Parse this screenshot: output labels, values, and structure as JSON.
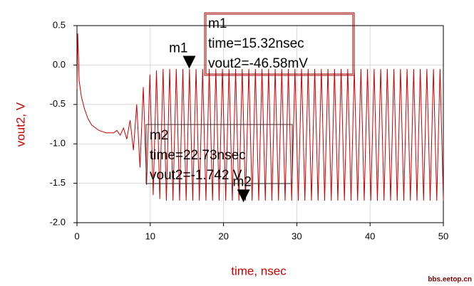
{
  "chart_data": {
    "type": "line",
    "x_label": "time, nsec",
    "y_label": "vout2, V",
    "xlim": [
      0,
      50
    ],
    "xticks": [
      0,
      10,
      20,
      30,
      40,
      50
    ],
    "ylim": [
      -2.0,
      0.5
    ],
    "yticks": [
      {
        "value": 0.5,
        "label": "0.5"
      },
      {
        "value": 0,
        "label": "0.0"
      },
      {
        "value": -0.5,
        "label": "-0.5"
      },
      {
        "value": -1.0,
        "label": "-1.0"
      },
      {
        "value": -1.5,
        "label": "-1.5"
      },
      {
        "value": -2.0,
        "label": "-2.0"
      }
    ],
    "grid": true,
    "series": [
      {
        "color": "#cc0000",
        "x": [
          0,
          0.1,
          0.3,
          0.6,
          1,
          1.5,
          2,
          3,
          4,
          5,
          5.45,
          5.9,
          6.35,
          6.8,
          7.25,
          7.7,
          8.15,
          8.6,
          9.05,
          9.5,
          9.95,
          10.4,
          10.85,
          11.3,
          11.75,
          12.2,
          12.65,
          13.1,
          13.55,
          14,
          14.45,
          14.9,
          15.35,
          15.8,
          16.25,
          16.7,
          17.15,
          17.6,
          18.05,
          18.5,
          18.95,
          19.4,
          19.85,
          20.3,
          20.75,
          21.2,
          21.65,
          22.1,
          22.55,
          23,
          23.45,
          23.9,
          24.35,
          24.8,
          25.25,
          25.7,
          26.15,
          26.6,
          27.05,
          27.5,
          27.95,
          28.4,
          28.85,
          29.3,
          29.75,
          30.2,
          30.65,
          31.1,
          31.55,
          32,
          32.45,
          32.9,
          33.35,
          33.8,
          34.25,
          34.7,
          35.15,
          35.6,
          36.05,
          36.5,
          36.95,
          37.4,
          37.85,
          38.3,
          38.75,
          39.2,
          39.65,
          40.1,
          40.55,
          41,
          41.45,
          41.9,
          42.35,
          42.8,
          43.25,
          43.7,
          44.15,
          44.6,
          45.05,
          45.5,
          45.95,
          46.4,
          46.85,
          47.3,
          47.75,
          48.2,
          48.65,
          49.1,
          49.55,
          50
        ],
        "values": [
          -0.3,
          0.4,
          -0.2,
          -0.4,
          -0.55,
          -0.68,
          -0.76,
          -0.83,
          -0.86,
          -0.86,
          -0.83,
          -0.89,
          -0.8,
          -0.94,
          -0.7,
          -1.08,
          -0.5,
          -1.3,
          -0.28,
          -1.52,
          -0.12,
          -1.65,
          -0.07,
          -1.7,
          -0.05,
          -1.72,
          -0.05,
          -1.72,
          -0.05,
          -1.72,
          -0.05,
          -1.72,
          -0.05,
          -1.72,
          -0.05,
          -1.72,
          -0.05,
          -1.72,
          -0.05,
          -1.72,
          -0.05,
          -1.72,
          -0.05,
          -1.72,
          -0.05,
          -1.72,
          -0.05,
          -1.72,
          -0.05,
          -1.72,
          -0.05,
          -1.72,
          -0.05,
          -1.72,
          -0.05,
          -1.72,
          -0.05,
          -1.72,
          -0.05,
          -1.72,
          -0.05,
          -1.72,
          -0.05,
          -1.72,
          -0.05,
          -1.72,
          -0.05,
          -1.72,
          -0.05,
          -1.72,
          -0.05,
          -1.72,
          -0.05,
          -1.72,
          -0.05,
          -1.72,
          -0.05,
          -1.72,
          -0.05,
          -1.72,
          -0.05,
          -1.72,
          -0.05,
          -1.72,
          -0.05,
          -1.72,
          -0.05,
          -1.72,
          -0.05,
          -1.72,
          -0.05,
          -1.72,
          -0.05,
          -1.72,
          -0.05,
          -1.72,
          -0.05,
          -1.72,
          -0.05,
          -1.72,
          -0.05,
          -1.72,
          -0.05,
          -1.72,
          -0.05,
          -1.72,
          -0.05,
          -1.72,
          -0.05,
          -1.72
        ]
      }
    ],
    "markers": [
      {
        "name": "m1",
        "x": 15.32,
        "y": -0.04658,
        "text": [
          "m1",
          "time=15.32nsec",
          "vout2=-46.58mV"
        ],
        "border": "#990000"
      },
      {
        "name": "m2",
        "x": 22.73,
        "y": -1.742,
        "text": [
          "m2",
          "time=22.73nsec",
          "vout2=-1.742 V"
        ],
        "border": "#333333"
      }
    ],
    "watermark": "bbs.eetop.cn"
  }
}
